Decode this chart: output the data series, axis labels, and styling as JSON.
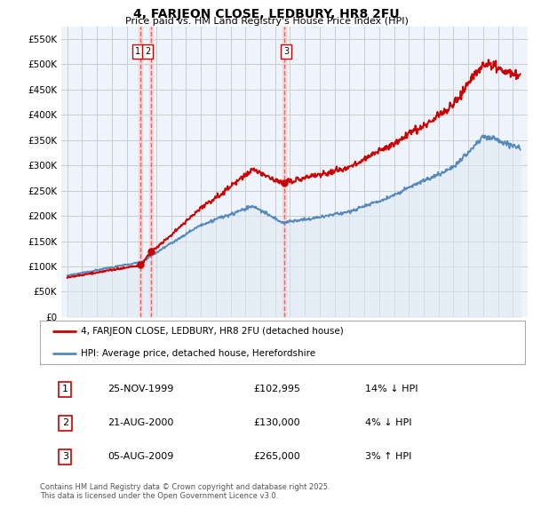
{
  "title": "4, FARJEON CLOSE, LEDBURY, HR8 2FU",
  "subtitle": "Price paid vs. HM Land Registry's House Price Index (HPI)",
  "ylim": [
    0,
    575000
  ],
  "yticks": [
    0,
    50000,
    100000,
    150000,
    200000,
    250000,
    300000,
    350000,
    400000,
    450000,
    500000,
    550000
  ],
  "sale_dates_num": [
    1999.9,
    2000.64,
    2009.59
  ],
  "sale_prices": [
    102995,
    130000,
    265000
  ],
  "sale_labels": [
    "1",
    "2",
    "3"
  ],
  "legend_red": "4, FARJEON CLOSE, LEDBURY, HR8 2FU (detached house)",
  "legend_blue": "HPI: Average price, detached house, Herefordshire",
  "table_data": [
    [
      "1",
      "25-NOV-1999",
      "£102,995",
      "14% ↓ HPI"
    ],
    [
      "2",
      "21-AUG-2000",
      "£130,000",
      "4% ↓ HPI"
    ],
    [
      "3",
      "05-AUG-2009",
      "£265,000",
      "3% ↑ HPI"
    ]
  ],
  "footnote": "Contains HM Land Registry data © Crown copyright and database right 2025.\nThis data is licensed under the Open Government Licence v3.0.",
  "red_color": "#cc0000",
  "blue_color": "#5588bb",
  "blue_fill": "#dde8f4",
  "vline_color": "#dd6666",
  "vband_color": "#f0d0d0",
  "background_color": "#ffffff",
  "grid_color": "#cccccc",
  "chart_bg": "#eef4fb"
}
